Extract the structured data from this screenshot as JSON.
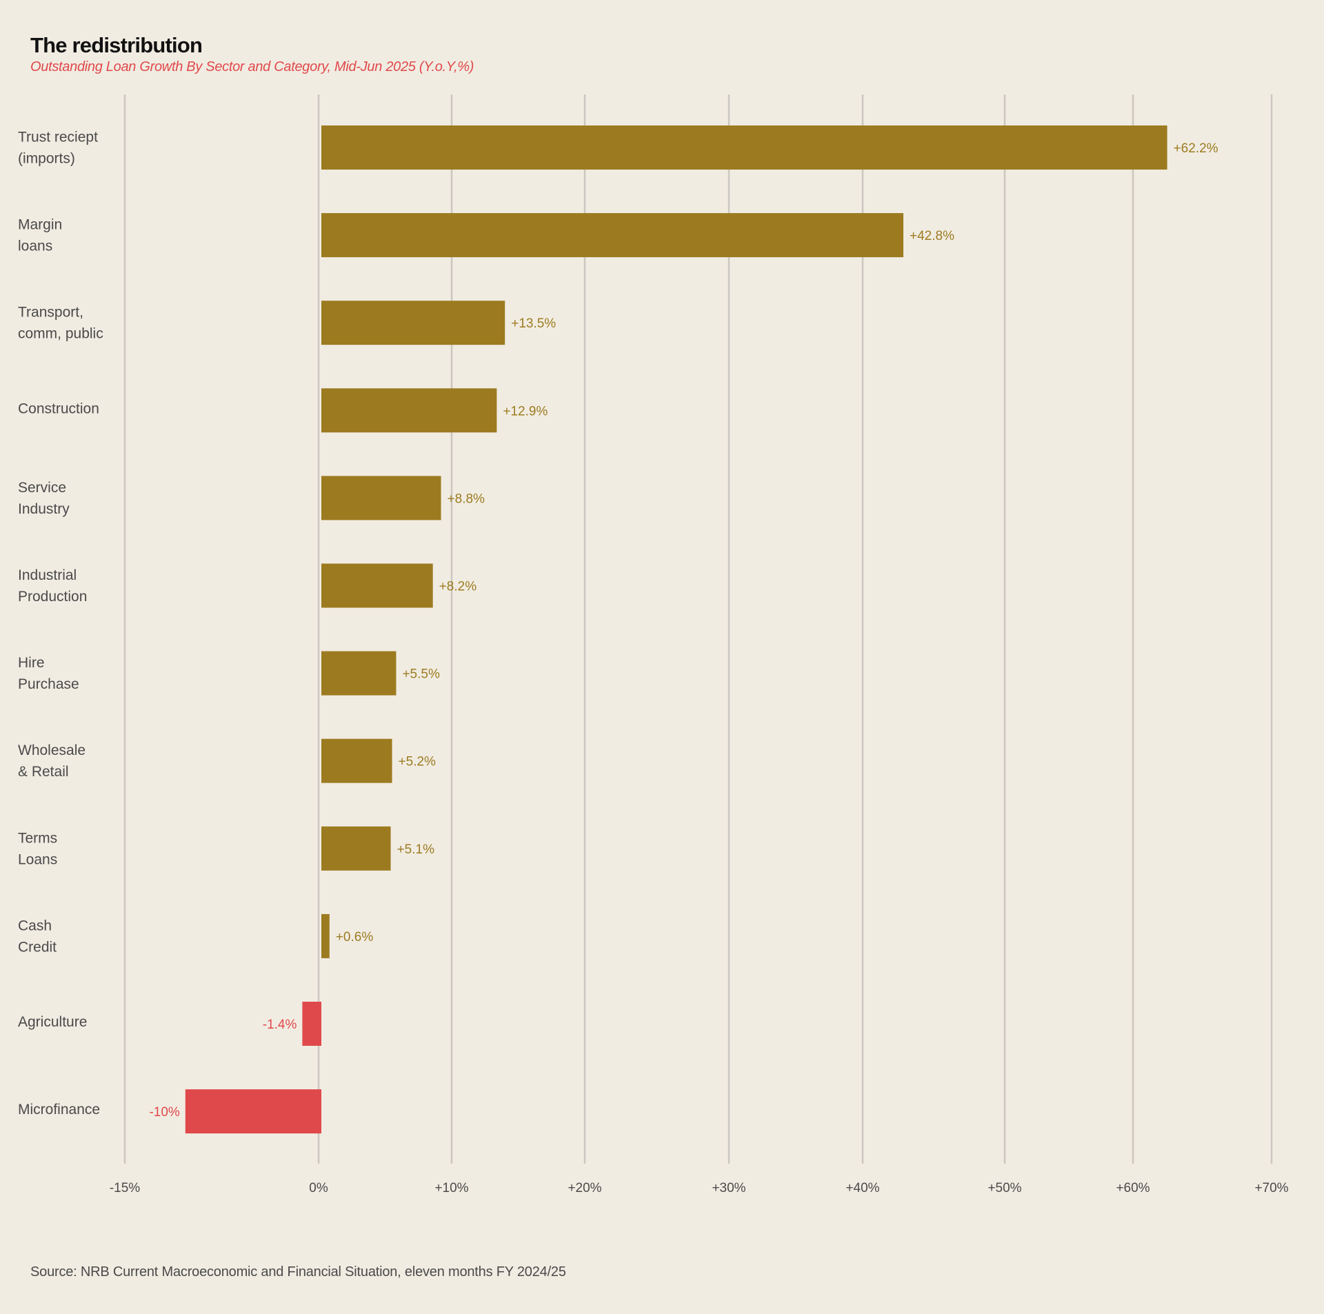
{
  "header": {
    "title": "The redistribution",
    "subtitle": "Outstanding Loan Growth By Sector and Category, Mid-Jun 2025 (Y.o.Y,%)"
  },
  "footer": {
    "source": "Source: NRB Current Macroeconomic and Financial Situation, eleven months FY 2024/25"
  },
  "colors": {
    "background": "#f1ece2",
    "positive": "#9c7b20",
    "negative": "#e0494b",
    "gridline": "#cbc6bf",
    "text": "#4a4a4a"
  },
  "chart_data": {
    "type": "bar",
    "orientation": "horizontal",
    "title": "The redistribution",
    "subtitle": "Outstanding Loan Growth By Sector and Category, Mid-Jun 2025 (Y.o.Y,%)",
    "xlabel": "",
    "ylabel": "",
    "xlim": [
      -15,
      70
    ],
    "grid": true,
    "legend": "none",
    "x_ticks": [
      {
        "value": -15,
        "label": "-15%"
      },
      {
        "value": 0,
        "label": "0%"
      },
      {
        "value": 10,
        "label": "+10%"
      },
      {
        "value": 20,
        "label": "+20%"
      },
      {
        "value": 30,
        "label": "+30%"
      },
      {
        "value": 40,
        "label": "+40%"
      },
      {
        "value": 50,
        "label": "+50%"
      },
      {
        "value": 60,
        "label": "+60%"
      },
      {
        "value": 70,
        "label": "+70%"
      }
    ],
    "categories": [
      [
        "Trust reciept",
        "(imports)"
      ],
      [
        "Margin",
        "loans"
      ],
      [
        "Transport,",
        "comm, public"
      ],
      [
        "Construction"
      ],
      [
        "Service",
        "Industry"
      ],
      [
        "Industrial",
        "Production"
      ],
      [
        "Hire",
        "Purchase"
      ],
      [
        "Wholesale",
        "& Retail"
      ],
      [
        "Terms",
        "Loans"
      ],
      [
        "Cash",
        "Credit"
      ],
      [
        "Agriculture"
      ],
      [
        "Microfinance"
      ]
    ],
    "values": [
      62.2,
      42.8,
      13.5,
      12.9,
      8.8,
      8.2,
      5.5,
      5.2,
      5.1,
      0.6,
      -1.4,
      -10
    ],
    "value_labels": [
      "+62.2%",
      "+42.8%",
      "+13.5%",
      "+12.9%",
      "+8.8%",
      "+8.2%",
      "+5.5%",
      "+5.2%",
      "+5.1%",
      "+0.6%",
      "-1.4%",
      "-10%"
    ]
  }
}
